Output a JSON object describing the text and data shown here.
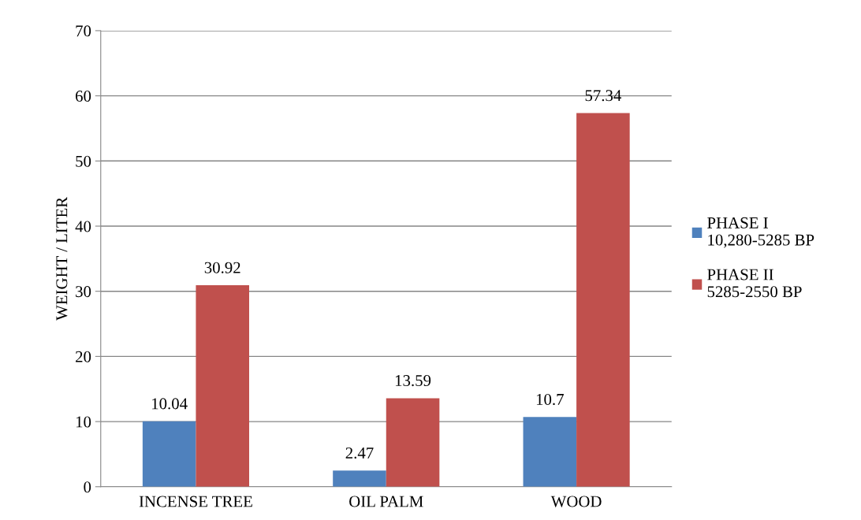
{
  "chart_data": {
    "type": "bar",
    "ylabel": "WEIGHT / LITER",
    "categories": [
      "INCENSE TREE",
      "OIL PALM",
      "WOOD"
    ],
    "series": [
      {
        "name": "PHASE I\n10,280-5285 BP",
        "color": "#4f81bd",
        "values": [
          10.04,
          2.47,
          10.7
        ]
      },
      {
        "name": "PHASE II\n5285-2550 BP",
        "color": "#c0504d",
        "values": [
          30.92,
          13.59,
          57.34
        ]
      }
    ],
    "ylim": [
      0,
      70
    ],
    "yticks": [
      0,
      10,
      20,
      30,
      40,
      50,
      60,
      70
    ],
    "grid": "y",
    "legend": "right",
    "data_labels": true
  }
}
